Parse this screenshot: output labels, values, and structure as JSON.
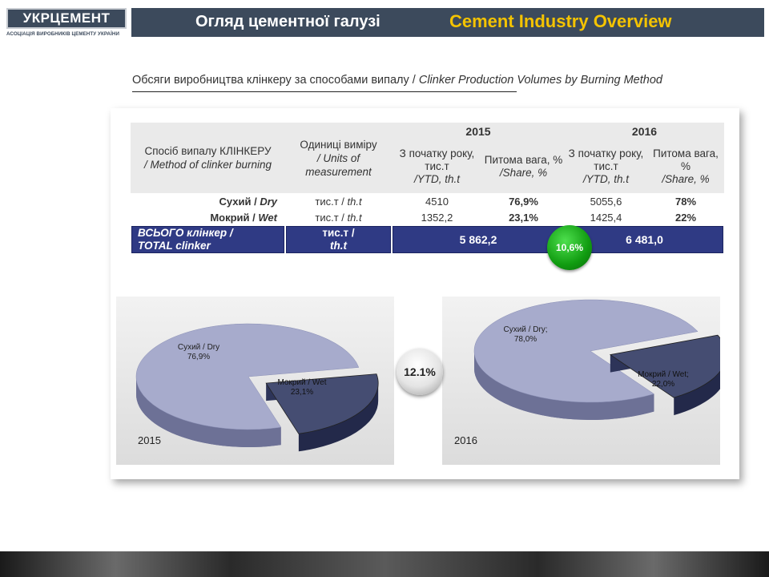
{
  "logo": {
    "name": "УКРЦЕМЕНТ",
    "subtitle": "АСОЦІАЦІЯ ВИРОБНИКІВ ЦЕМЕНТУ УКРАЇНИ"
  },
  "header": {
    "title_ua": "Огляд цементної галузі",
    "title_en": "Cement Industry Overview"
  },
  "subtitle": {
    "ua": "Обсяги виробництва клінкеру за способами випалу / ",
    "en": "Clinker Production Volumes by Burning Method"
  },
  "table": {
    "years": [
      "2015",
      "2016"
    ],
    "method_header_ua": "Спосіб випалу КЛІНКЕРУ",
    "method_header_en": "/ Method of clinker burning",
    "units_header_ua": "Одиниці виміру",
    "units_header_en": "/ Units of measurement",
    "ytd_header_ua": "З початку року, тис.т",
    "ytd_header_en": "/YTD, th.t",
    "share_header_ua": "Питома вага, %",
    "share_header_en": "/Share, %",
    "rows": [
      {
        "label_ua": "Сухий / ",
        "label_en": "Dry",
        "unit_ua": "тис.т / ",
        "unit_en": "th.t",
        "ytd_2015": "4510",
        "share_2015": "76,9%",
        "ytd_2016": "5055,6",
        "share_2016": "78%"
      },
      {
        "label_ua": "Мокрий / ",
        "label_en": "Wet",
        "unit_ua": "тис.т / ",
        "unit_en": "th.t",
        "ytd_2015": "1352,2",
        "share_2015": "23,1%",
        "ytd_2016": "1425,4",
        "share_2016": "22%"
      }
    ],
    "total": {
      "label_ua": "ВСЬОГО клінкер /",
      "label_en": "TOTAL clinker",
      "unit_ua": "тис.т /",
      "unit_en": "th.t",
      "value_2015": "5 862,2",
      "value_2016": "6 481,0"
    }
  },
  "badges": {
    "growth_table": "10,6%",
    "growth_pies": "12.1%"
  },
  "colors": {
    "header_bg": "#3c4a5c",
    "accent_yellow": "#f4c300",
    "total_row": "#2f3a84",
    "growth_badge": "#1aa51a",
    "dry_slice": "#a7abcc",
    "wet_slice": "#454d72"
  },
  "chart_data": [
    {
      "type": "pie",
      "year_label": "2015",
      "slices": [
        {
          "label": "Сухий / Dry",
          "value": 76.9,
          "value_label": "76,9%"
        },
        {
          "label": "Мокрий / Wet",
          "value": 23.1,
          "value_label": "23,1%"
        }
      ]
    },
    {
      "type": "pie",
      "year_label": "2016",
      "slices": [
        {
          "label": "Сухий / Dry;",
          "value": 78.0,
          "value_label": "78,0%"
        },
        {
          "label": "Мокрий / Wet;",
          "value": 22.0,
          "value_label": "22,0%"
        }
      ]
    }
  ]
}
